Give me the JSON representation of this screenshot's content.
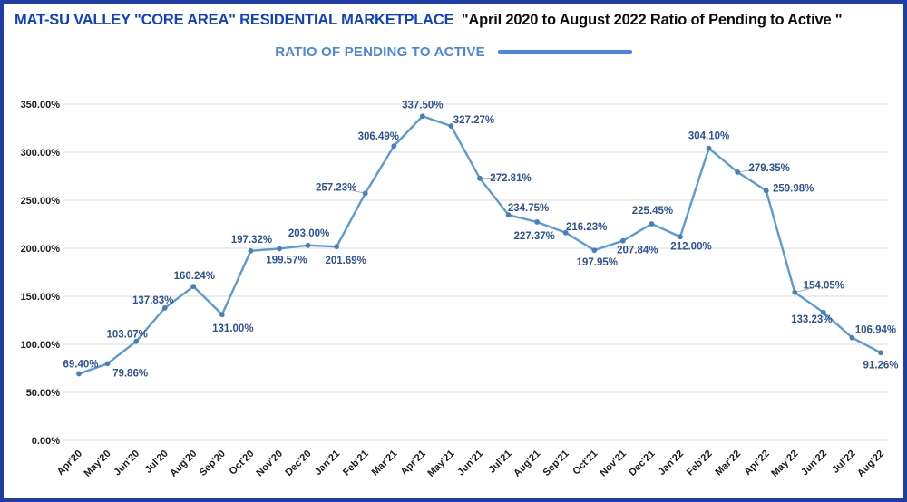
{
  "header": {
    "title_primary": "MAT-SU VALLEY \"CORE AREA\" RESIDENTIAL MARKETPLACE",
    "title_secondary": "\"April 2020 to August 2022  Ratio of Pending to Active \""
  },
  "legend": {
    "label": "RATIO OF PENDING TO ACTIVE"
  },
  "colors": {
    "frame_border": "#1f3da6",
    "title_primary": "#0f41c8",
    "title_secondary": "#0d0d0d",
    "legend": "#4a86e0",
    "line": "#5b9bd5",
    "marker": "#4a7ebb",
    "data_label": "#2e5296",
    "gridline": "#d9d9d9",
    "axis_text": "#1a1a1a"
  },
  "chart_data": {
    "type": "line",
    "title": "MAT-SU VALLEY \"CORE AREA\" RESIDENTIAL MARKETPLACE \"April 2020 to August 2022  Ratio of Pending to Active \"",
    "series_name": "RATIO OF PENDING TO ACTIVE",
    "legend_position": "top",
    "grid": true,
    "xlabel": "",
    "ylabel": "",
    "ylim": [
      0,
      350
    ],
    "y_ticks": [
      "0.00%",
      "50.00%",
      "100.00%",
      "150.00%",
      "200.00%",
      "250.00%",
      "300.00%",
      "350.00%"
    ],
    "categories": [
      "Apr'20",
      "May'20",
      "Jun'20",
      "Jul'20",
      "Aug'20",
      "Sep'20",
      "Oct'20",
      "Nov'20",
      "Dec'20",
      "Jan'21",
      "Feb'21",
      "Mar'21",
      "Apr'21",
      "May'21",
      "Jun'21",
      "Jul'21",
      "Aug'21",
      "Sep'21",
      "Oct'21",
      "Nov'21",
      "Dec'21",
      "Jan'22",
      "Feb'22",
      "Mar'22",
      "Apr'22",
      "May'22",
      "Jun'22",
      "Jul'22",
      "Aug'22"
    ],
    "values": [
      69.4,
      79.86,
      103.07,
      137.83,
      160.24,
      131.0,
      197.32,
      199.57,
      203.0,
      201.69,
      257.23,
      306.49,
      337.5,
      327.27,
      272.81,
      234.75,
      227.37,
      216.23,
      197.95,
      207.84,
      225.45,
      212.0,
      304.1,
      279.35,
      259.98,
      154.05,
      133.23,
      106.94,
      91.26
    ],
    "data_labels": [
      "69.40%",
      "79.86%",
      "103.07%",
      "137.83%",
      "160.24%",
      "131.00%",
      "197.32%",
      "199.57%",
      "203.00%",
      "201.69%",
      "257.23%",
      "306.49%",
      "337.50%",
      "327.27%",
      "272.81%",
      "234.75%",
      "227.37%",
      "216.23%",
      "197.95%",
      "207.84%",
      "225.45%",
      "212.00%",
      "304.10%",
      "279.35%",
      "259.98%",
      "154.05%",
      "133.23%",
      "106.94%",
      "91.26%"
    ]
  }
}
